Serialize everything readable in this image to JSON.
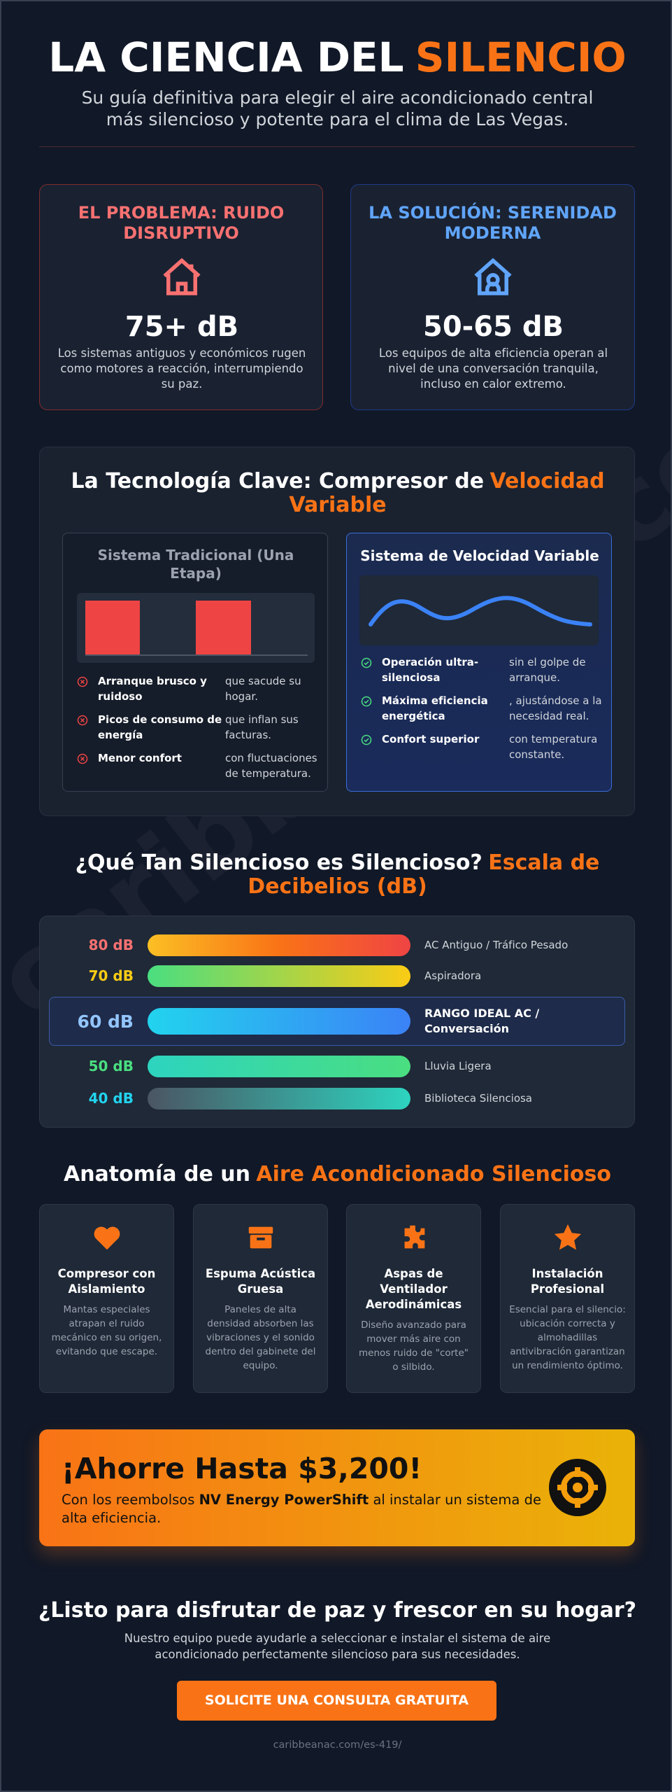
{
  "header": {
    "title_main": "LA CIENCIA DEL",
    "title_accent": "SILENCIO",
    "subtitle": "Su guía definitiva para elegir el aire acondicionado central más silencioso y potente para el clima de Las Vegas."
  },
  "problem": {
    "heading": "EL PROBLEMA: RUIDO DISRUPTIVO",
    "value": "75+ dB",
    "description": "Los sistemas antiguos y económicos rugen como motores a reacción, interrumpiendo su paz."
  },
  "solution": {
    "heading": "LA SOLUCIÓN: SERENIDAD MODERNA",
    "value": "50-65 dB",
    "description": "Los equipos de alta eficiencia operan al nivel de una conversación tranquila, incluso en calor extremo."
  },
  "technology": {
    "heading_main": "La Tecnología Clave: Compresor de",
    "heading_accent": "Velocidad Variable",
    "traditional": {
      "title": "Sistema Tradicional (Una Etapa)",
      "items": [
        {
          "bold": "Arranque brusco y ruidoso",
          "text": "que sacude su hogar."
        },
        {
          "bold": "Picos de consumo de energía",
          "text": "que inflan sus facturas."
        },
        {
          "bold": "Menor confort",
          "text": "con fluctuaciones de temperatura."
        }
      ]
    },
    "variable": {
      "title": "Sistema de Velocidad Variable",
      "items": [
        {
          "bold": "Operación ultra-silenciosa",
          "text": "sin el golpe de arranque."
        },
        {
          "bold": "Máxima eficiencia energética",
          "text": ", ajustándose a la necesidad real."
        },
        {
          "bold": "Confort superior",
          "text": "con temperatura constante."
        }
      ]
    }
  },
  "scale": {
    "heading_main": "¿Qué Tan Silencioso es Silencioso?",
    "heading_accent": "Escala de Decibelios (dB)",
    "rows": [
      {
        "level": "80 dB",
        "label": "AC Antiguo / Tráfico Pesado"
      },
      {
        "level": "70 dB",
        "label": "Aspiradora"
      },
      {
        "level": "60 dB",
        "label": "RANGO IDEAL AC / Conversación"
      },
      {
        "level": "50 dB",
        "label": "Lluvia Ligera"
      },
      {
        "level": "40 dB",
        "label": "Biblioteca Silenciosa"
      }
    ]
  },
  "anatomy": {
    "heading_main": "Anatomía de un",
    "heading_accent": "Aire Acondicionado Silencioso",
    "cards": [
      {
        "title": "Compresor con Aislamiento",
        "text": "Mantas especiales atrapan el ruido mecánico en su origen, evitando que escape."
      },
      {
        "title": "Espuma Acústica Gruesa",
        "text": "Paneles de alta densidad absorben las vibraciones y el sonido dentro del gabinete del equipo."
      },
      {
        "title": "Aspas de Ventilador Aerodinámicas",
        "text": "Diseño avanzado para mover más aire con menos ruido de \"corte\" o silbido."
      },
      {
        "title": "Instalación Profesional",
        "text": "Esencial para el silencio: ubicación correcta y almohadillas antivibración garantizan un rendimiento óptimo."
      }
    ]
  },
  "savings": {
    "title": "¡Ahorre Hasta $3,200!",
    "text_before": "Con los reembolsos",
    "text_bold": "NV Energy PowerShift",
    "text_after": "al instalar un sistema de alta eficiencia."
  },
  "cta": {
    "heading": "¿Listo para disfrutar de paz y frescor en su hogar?",
    "text": "Nuestro equipo puede ayudarle a seleccionar e instalar el sistema de aire acondicionado perfectamente silencioso para sus necesidades.",
    "button": "SOLICITE UNA CONSULTA GRATUITA"
  },
  "footer": {
    "url": "caribbeanac.com/es-419/"
  }
}
